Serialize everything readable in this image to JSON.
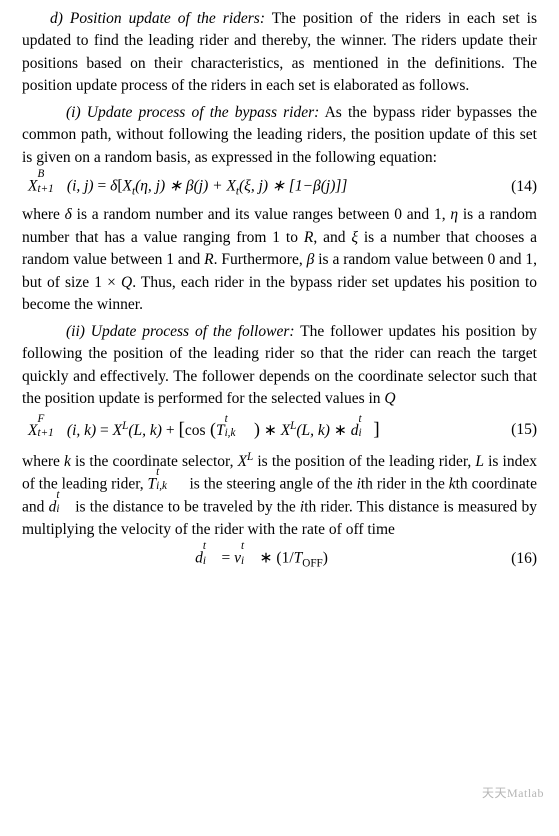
{
  "section_d": {
    "heading": "d) Position update of the riders:",
    "text": "The position of the riders in each set is updated to find the leading rider and thereby, the winner. The riders update their positions based on their characteristics, as mentioned in the definitions. The position update process of the riders in each set is elaborated as follows."
  },
  "section_i": {
    "heading": "(i) Update process of the bypass rider:",
    "text": "As the bypass rider bypasses the common path, without following the leading riders, the position update of this set is given on a random basis, as expressed in the following equation:"
  },
  "eq14": {
    "var": "X",
    "sup_B": "B",
    "sub_t1": "t+1",
    "args_ij": "(i, j)",
    "eq": " = ",
    "delta": "δ",
    "lbr": "[",
    "Xt1": "X",
    "sub_t": "t",
    "args_eta": "(η, j)",
    "beta": " ∗ β(j) + ",
    "Xt2": "X",
    "args_xi": "(ξ, j)",
    "tail": " ∗ [1−β(j)]]",
    "num": "(14)"
  },
  "para14": {
    "p1a": "where ",
    "delta": "δ",
    "p1b": " is a random number and its value ranges between 0 and 1, ",
    "eta": "η",
    "p1c": " is a random number that has a value ranging from 1 to ",
    "R1": "R",
    "p1d": ", and ",
    "xi": "ξ",
    "p1e": " is a number that chooses a random value between 1 and ",
    "R2": "R",
    "p1f": ". Furthermore, ",
    "beta": "β",
    "p1g": " is a random value between 0 and 1, but of size 1 × ",
    "Q": "Q",
    "p1h": ". Thus, each rider in the bypass rider set updates his position to become the winner."
  },
  "section_ii": {
    "heading": "(ii) Update process of the follower:",
    "text": "The follower updates his position by following the position of the leading rider so that the rider can reach the target quickly and effectively. The follower depends on the coordinate selector such that the position update is performed for the selected values in ",
    "Q": "Q"
  },
  "eq15": {
    "var": "X",
    "sup_F": "F",
    "sub_t1": "t+1",
    "args_ik": "(i, k)",
    "eq": " = ",
    "XL1": "X",
    "supL": "L",
    "args_Lk": "(L, k)",
    "plus": " + ",
    "lbr": "[",
    "cos": "cos",
    "lpar": " (",
    "T": "T",
    "T_top": "t",
    "T_bot": "i,k",
    "rpar": ")",
    "star1": " ∗ ",
    "XL2": "X",
    "args_Lk2": "(L, k)",
    "star2": " ∗ ",
    "d": "d",
    "d_top": "t",
    "d_bot": "i",
    "rbr": "]",
    "num": "(15)"
  },
  "para15": {
    "a": "where ",
    "k": "k",
    "b": " is the coordinate selector, ",
    "XL": "X",
    "supL": "L",
    "c": " is the position of the leading rider, ",
    "L": "L",
    "d": " is index of the leading rider, ",
    "T": "T",
    "T_top": "t",
    "T_bot": "i,k",
    "e": " is the steering angle of the ",
    "ith1": "i",
    "f": "th rider in the ",
    "kth": "k",
    "g": "th coordinate and ",
    "dvar": "d",
    "d_top": "t",
    "d_bot": "i",
    "h": " is the distance to be traveled by the ",
    "ith2": "i",
    "i_": "th rider. This distance is measured by multiplying the velocity of the rider with the rate of off time"
  },
  "eq16": {
    "d": "d",
    "d_top": "t",
    "d_bot": "i",
    "eq": " = ",
    "v": "v",
    "v_top": "t",
    "v_bot": "i",
    "mul": " ∗ (1/",
    "T": "T",
    "Tsub": "OFF",
    "close": ")",
    "num": "(16)"
  },
  "watermark": "天天Matlab"
}
